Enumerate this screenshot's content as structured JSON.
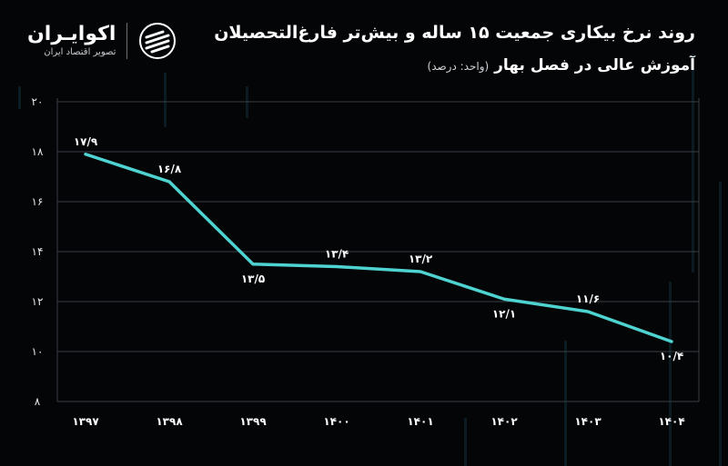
{
  "header": {
    "title": "روند نرخ بیکاری جمعیت ۱۵ ساله و بیش‌تر فارغ‌التحصیلان",
    "subtitle": "آموزش عالی در فصل بهار",
    "unit_note": "(واحد: درصد)"
  },
  "brand": {
    "name": "اکوایـران",
    "tagline": "تصویر اقتصاد ایران",
    "icon": "ecoiran-logo-icon"
  },
  "colors": {
    "background": "#030507",
    "line": "#4fd3d0",
    "grid": "#3a3f44",
    "text": "#ffffff"
  },
  "chart_data": {
    "type": "line",
    "categories": [
      "۱۳۹۷",
      "۱۳۹۸",
      "۱۳۹۹",
      "۱۴۰۰",
      "۱۴۰۱",
      "۱۴۰۲",
      "۱۴۰۳",
      "۱۴۰۴"
    ],
    "series": [
      {
        "values": [
          17.9,
          16.8,
          13.5,
          13.4,
          13.2,
          12.1,
          11.6,
          10.4
        ],
        "labels": [
          "۱۷/۹",
          "۱۶/۸",
          "۱۳/۵",
          "۱۳/۴",
          "۱۳/۲",
          "۱۲/۱",
          "۱۱/۶",
          "۱۰/۴"
        ],
        "label_position": [
          "above",
          "above",
          "below",
          "above",
          "above",
          "below",
          "above",
          "below"
        ]
      }
    ],
    "ylim": [
      8,
      20
    ],
    "yticks": [
      8,
      10,
      12,
      14,
      16,
      18,
      20
    ],
    "ytick_labels": [
      "۸",
      "۱۰",
      "۱۲",
      "۱۴",
      "۱۶",
      "۱۸",
      "۲۰"
    ],
    "grid": true,
    "legend": "none"
  }
}
